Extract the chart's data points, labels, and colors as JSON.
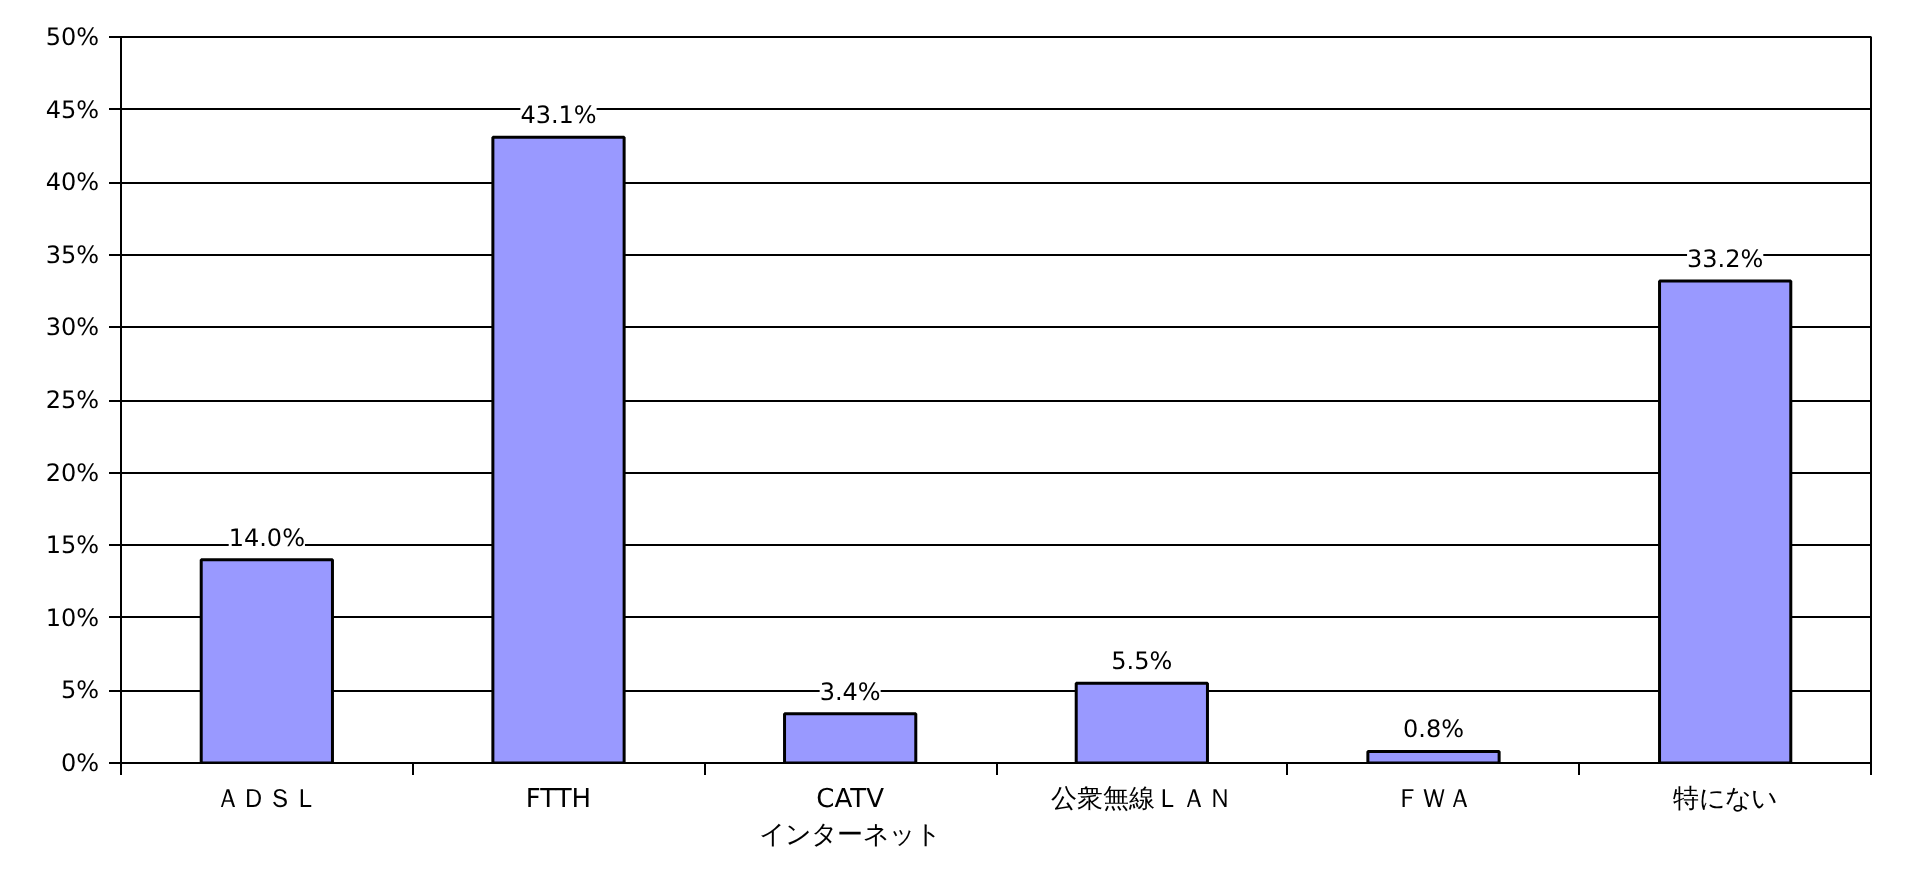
{
  "chart_data": {
    "type": "bar",
    "categories": [
      "ＡＤＳＬ",
      "FTTH",
      "CATV\nインターネット",
      "公衆無線ＬＡＮ",
      "ＦＷＡ",
      "特にない"
    ],
    "values": [
      14.0,
      43.1,
      3.4,
      5.5,
      0.8,
      33.2
    ],
    "value_labels": [
      "14.0%",
      "43.1%",
      "3.4%",
      "5.5%",
      "0.8%",
      "33.2%"
    ],
    "color": "#9999ff",
    "ylim": [
      0,
      50
    ],
    "yticks": [
      {
        "value": 0,
        "label": "0%"
      },
      {
        "value": 5,
        "label": "5%"
      },
      {
        "value": 10,
        "label": "10%"
      },
      {
        "value": 15,
        "label": "15%"
      },
      {
        "value": 20,
        "label": "20%"
      },
      {
        "value": 25,
        "label": "25%"
      },
      {
        "value": 30,
        "label": "30%"
      },
      {
        "value": 35,
        "label": "35%"
      },
      {
        "value": 40,
        "label": "40%"
      },
      {
        "value": 45,
        "label": "45%"
      },
      {
        "value": 50,
        "label": "50%"
      }
    ],
    "grid": "y"
  }
}
